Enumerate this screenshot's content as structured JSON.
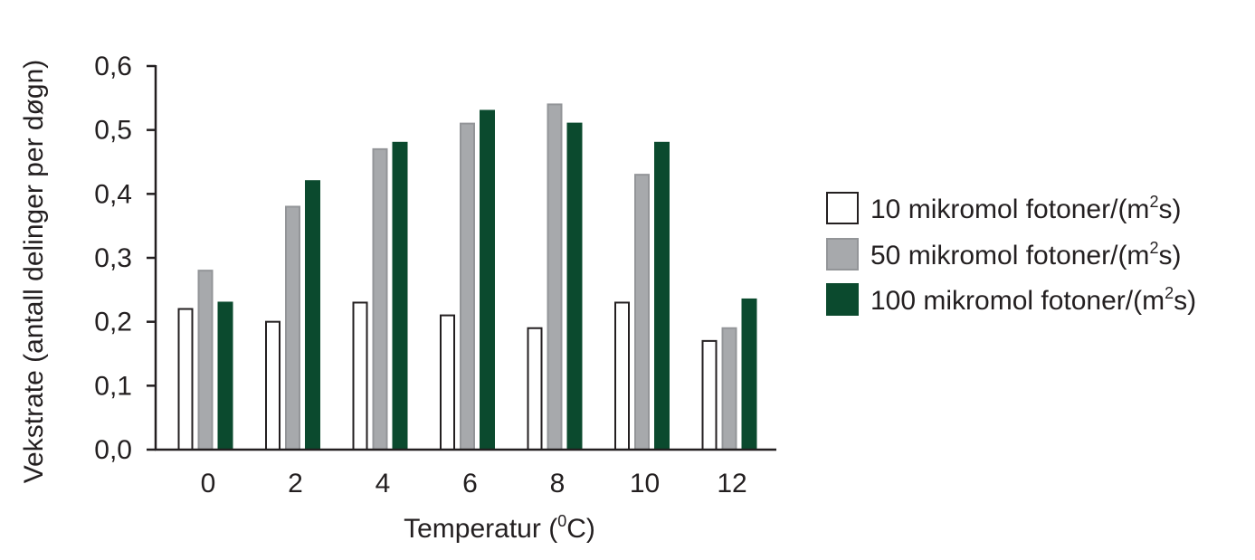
{
  "chart_data": {
    "type": "bar",
    "categories": [
      "0",
      "2",
      "4",
      "6",
      "8",
      "10",
      "12"
    ],
    "series": [
      {
        "name": "10 mikromol fotoner/(m²s)",
        "values": [
          0.22,
          0.2,
          0.23,
          0.21,
          0.19,
          0.23,
          0.17
        ],
        "color": "#ffffff",
        "stroke": "#231f20"
      },
      {
        "name": "50 mikromol fotoner/(m²s)",
        "values": [
          0.28,
          0.38,
          0.47,
          0.51,
          0.54,
          0.43,
          0.19
        ],
        "color": "#a7a9ac",
        "stroke": "#939598"
      },
      {
        "name": "100 mikromol fotoner/(m²s)",
        "values": [
          0.23,
          0.42,
          0.48,
          0.53,
          0.51,
          0.48,
          0.235
        ],
        "color": "#0b4a2e",
        "stroke": "#0b4a2e"
      }
    ],
    "legend_text": [
      {
        "prefix": "10 mikromol fotoner/(m",
        "sup": "2",
        "suffix": "s)"
      },
      {
        "prefix": "50 mikromol fotoner/(m",
        "sup": "2",
        "suffix": "s)"
      },
      {
        "prefix": "100 mikromol fotoner/(m",
        "sup": "2",
        "suffix": "s)"
      }
    ],
    "xlabel": {
      "prefix": "Temperatur (",
      "sup": "0",
      "suffix": "C)"
    },
    "ylabel": "Vekstrate (antall delinger per døgn)",
    "ylim": [
      0,
      0.6
    ],
    "yticks": [
      0.0,
      0.1,
      0.2,
      0.3,
      0.4,
      0.5,
      0.6
    ],
    "ytick_labels": [
      "0,0",
      "0,1",
      "0,2",
      "0,3",
      "0,4",
      "0,5",
      "0,6"
    ],
    "grid": false,
    "legend_position": "right"
  }
}
